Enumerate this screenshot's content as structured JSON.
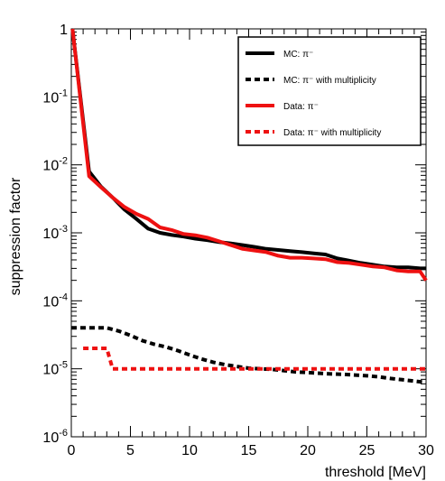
{
  "chart_data": {
    "type": "line",
    "title": "",
    "xlabel": "threshold [MeV]",
    "ylabel": "suppression factor",
    "xlim": [
      0,
      30
    ],
    "ylim": [
      1e-06,
      1
    ],
    "yscale": "log",
    "grid": false,
    "legend_position": "top-right",
    "x_ticks": [
      0,
      5,
      10,
      15,
      20,
      25,
      30
    ],
    "x_tick_labels": [
      "0",
      "5",
      "10",
      "15",
      "20",
      "25",
      "30"
    ],
    "y_ticks": [
      1e-06,
      1e-05,
      0.0001,
      0.001,
      0.01,
      0.1,
      1
    ],
    "y_tick_labels": [
      {
        "base": "10",
        "exp": "-6"
      },
      {
        "base": "10",
        "exp": "-5"
      },
      {
        "base": "10",
        "exp": "-4"
      },
      {
        "base": "10",
        "exp": "-3"
      },
      {
        "base": "10",
        "exp": "-2"
      },
      {
        "base": "10",
        "exp": "-1"
      },
      {
        "base": "1",
        "exp": ""
      }
    ],
    "series": [
      {
        "name": "MC: π⁻",
        "color": "#000000",
        "style": "solid",
        "x": [
          0.1,
          1.5,
          2.5,
          3.5,
          4.5,
          5.5,
          6.5,
          7.5,
          8.5,
          9.5,
          10.5,
          11.5,
          12.5,
          13.5,
          14.5,
          15.5,
          16.5,
          17.5,
          18.5,
          19.5,
          20.5,
          21.5,
          22.5,
          23.5,
          24.5,
          25.5,
          26.5,
          27.5,
          28.5,
          29.5,
          30
        ],
        "y": [
          1.0,
          0.008,
          0.0048,
          0.0033,
          0.0022,
          0.0016,
          0.00115,
          0.001,
          0.00093,
          0.00088,
          0.00082,
          0.00078,
          0.00073,
          0.0007,
          0.00066,
          0.00062,
          0.00058,
          0.00056,
          0.00054,
          0.00052,
          0.0005,
          0.00048,
          0.00042,
          0.00039,
          0.00036,
          0.00034,
          0.00032,
          0.00031,
          0.00031,
          0.0003,
          0.0003
        ]
      },
      {
        "name": "MC: π⁻ with multiplicity",
        "color": "#000000",
        "style": "dashed",
        "x": [
          0,
          3,
          4,
          5,
          6,
          7,
          8,
          9,
          10,
          11,
          12,
          13,
          14,
          15,
          16,
          17,
          18,
          19,
          20,
          21,
          22,
          23,
          24,
          25,
          26,
          27,
          28,
          29,
          30
        ],
        "y": [
          4e-05,
          4e-05,
          3.6e-05,
          3.1e-05,
          2.6e-05,
          2.3e-05,
          2.1e-05,
          1.85e-05,
          1.6e-05,
          1.4e-05,
          1.25e-05,
          1.15e-05,
          1.08e-05,
          1.02e-05,
          1e-05,
          9.8e-06,
          9.4e-06,
          9e-06,
          8.8e-06,
          8.6e-06,
          8.4e-06,
          8.3e-06,
          8.1e-06,
          7.9e-06,
          7.6e-06,
          7.2e-06,
          6.9e-06,
          6.6e-06,
          6.3e-06
        ]
      },
      {
        "name": "Data: π⁻",
        "color": "#ee1111",
        "style": "solid",
        "x": [
          0.1,
          1.5,
          2.5,
          3.5,
          4.5,
          5.5,
          6.5,
          7.5,
          8.5,
          9.5,
          10.5,
          11.5,
          12.5,
          13.5,
          14.5,
          15.5,
          16.5,
          17.5,
          18.5,
          19.5,
          20.5,
          21.5,
          22.5,
          23.5,
          24.5,
          25.5,
          26.5,
          27.5,
          28.5,
          29.5,
          30
        ],
        "y": [
          1.0,
          0.0068,
          0.0047,
          0.0033,
          0.0024,
          0.0019,
          0.0016,
          0.0012,
          0.0011,
          0.00096,
          0.00092,
          0.00085,
          0.00075,
          0.00066,
          0.00058,
          0.00055,
          0.00052,
          0.00046,
          0.00043,
          0.00043,
          0.00042,
          0.00041,
          0.00037,
          0.00036,
          0.00034,
          0.00032,
          0.00031,
          0.00028,
          0.00027,
          0.00027,
          0.0002
        ]
      },
      {
        "name": "Data: π⁻ with multiplicity",
        "color": "#ee1111",
        "style": "dashed",
        "x": [
          1,
          3,
          3.5,
          30
        ],
        "y": [
          2e-05,
          2e-05,
          1e-05,
          1e-05
        ]
      }
    ]
  }
}
